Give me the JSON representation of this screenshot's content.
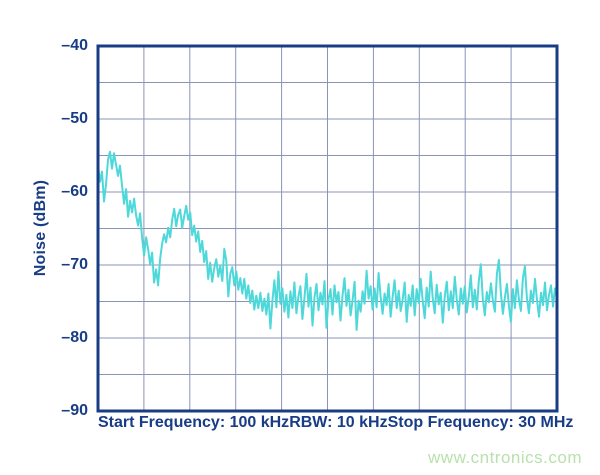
{
  "colors": {
    "navy": "#183c85",
    "grid": "#8a94b8",
    "trace": "#4ed8d9",
    "watermark_green": "#b9e0ae",
    "background": "#ffffff"
  },
  "watermark": {
    "text": "www.cntronics.com"
  },
  "chart_data": {
    "type": "line",
    "title": "",
    "ylabel": "Noise (dBm)",
    "xlabel": "",
    "x_axis": {
      "start_label": "Start Frequency: 100 kHz",
      "rbw_label": "RBW: 10 kHz",
      "stop_label": "Stop Frequency: 30 MHz",
      "start_mhz": 0.1,
      "stop_mhz": 30
    },
    "ylim": [
      -90,
      -40
    ],
    "y_ticks": [
      -40,
      -50,
      -60,
      -70,
      -80,
      -90
    ],
    "y_tick_labels": [
      "–40",
      "–50",
      "–60",
      "–70",
      "–80",
      "–90"
    ],
    "grid": {
      "x_divisions": 10,
      "y_divisions": 10,
      "y_step_db": 5,
      "grid_on": true
    },
    "legend": {
      "visible": false
    },
    "series": [
      {
        "name": "noise",
        "unit": "dBm",
        "values": [
          -56.3,
          -58.6,
          -57.2,
          -61.3,
          -59.0,
          -55.6,
          -54.5,
          -56.8,
          -54.7,
          -56.2,
          -57.8,
          -56.4,
          -59.2,
          -61.6,
          -59.6,
          -63.4,
          -61.2,
          -62.8,
          -60.9,
          -63.2,
          -64.6,
          -62.9,
          -66.3,
          -68.7,
          -66.2,
          -67.8,
          -69.9,
          -68.3,
          -72.4,
          -70.6,
          -72.8,
          -69.2,
          -67.1,
          -65.8,
          -66.9,
          -64.9,
          -66.2,
          -63.8,
          -62.3,
          -64.7,
          -63.1,
          -62.4,
          -64.9,
          -63.3,
          -61.9,
          -63.8,
          -62.8,
          -65.9,
          -64.6,
          -66.8,
          -65.4,
          -68.2,
          -66.7,
          -69.6,
          -68.1,
          -71.9,
          -69.7,
          -72.3,
          -70.4,
          -69.2,
          -71.6,
          -70.1,
          -72.2,
          -67.8,
          -69.4,
          -74.3,
          -71.2,
          -70.3,
          -72.8,
          -70.9,
          -73.4,
          -71.8,
          -73.9,
          -71.9,
          -74.6,
          -72.8,
          -75.2,
          -73.5,
          -76.1,
          -74.2,
          -75.9,
          -73.8,
          -76.3,
          -74.6,
          -76.8,
          -73.9,
          -78.7,
          -74.9,
          -72.1,
          -75.8,
          -70.9,
          -75.3,
          -73.2,
          -76.4,
          -74.1,
          -77.2,
          -73.6,
          -75.9,
          -72.4,
          -76.6,
          -74.3,
          -72.9,
          -77.4,
          -74.6,
          -71.2,
          -75.7,
          -73.1,
          -78.3,
          -74.4,
          -72.6,
          -76.2,
          -73.8,
          -75.4,
          -72.2,
          -78.6,
          -74.7,
          -73.3,
          -76.8,
          -72.8,
          -75.1,
          -73.7,
          -77.6,
          -74.2,
          -71.8,
          -75.6,
          -73.4,
          -76.9,
          -74.8,
          -72.3,
          -78.9,
          -74.9,
          -76.4,
          -73.6,
          -75.3,
          -70.8,
          -74.6,
          -72.9,
          -76.1,
          -73.2,
          -75.8,
          -71.1,
          -74.3,
          -76.7,
          -73.9,
          -75.5,
          -72.6,
          -77.1,
          -74.4,
          -72.1,
          -75.9,
          -73.5,
          -76.3,
          -74.7,
          -72.4,
          -77.8,
          -74.1,
          -75.6,
          -72.8,
          -76.9,
          -73.3,
          -75.2,
          -71.9,
          -74.9,
          -77.3,
          -73.1,
          -75.7,
          -70.9,
          -74.5,
          -76.6,
          -72.7,
          -75.4,
          -73.8,
          -77.9,
          -74.2,
          -72.3,
          -76.2,
          -73.6,
          -75.9,
          -71.6,
          -74.8,
          -76.8,
          -73.2,
          -75.3,
          -72.9,
          -76.5,
          -74.3,
          -71.4,
          -75.8,
          -73.4,
          -76.1,
          -72.2,
          -69.9,
          -74.6,
          -76.9,
          -73.7,
          -75.1,
          -72.5,
          -74.9,
          -76.4,
          -71.2,
          -69.3,
          -73.9,
          -76.7,
          -74.4,
          -72.6,
          -75.6,
          -77.8,
          -73.3,
          -75.9,
          -72.1,
          -74.7,
          -76.3,
          -71.8,
          -70.2,
          -74.5,
          -76.6,
          -73.5,
          -75.2,
          -71.9,
          -74.8,
          -77.1,
          -73.8,
          -75.5,
          -72.4,
          -76.2,
          -74.1,
          -72.8,
          -75.7,
          -73.2,
          -74.6
        ]
      }
    ]
  }
}
